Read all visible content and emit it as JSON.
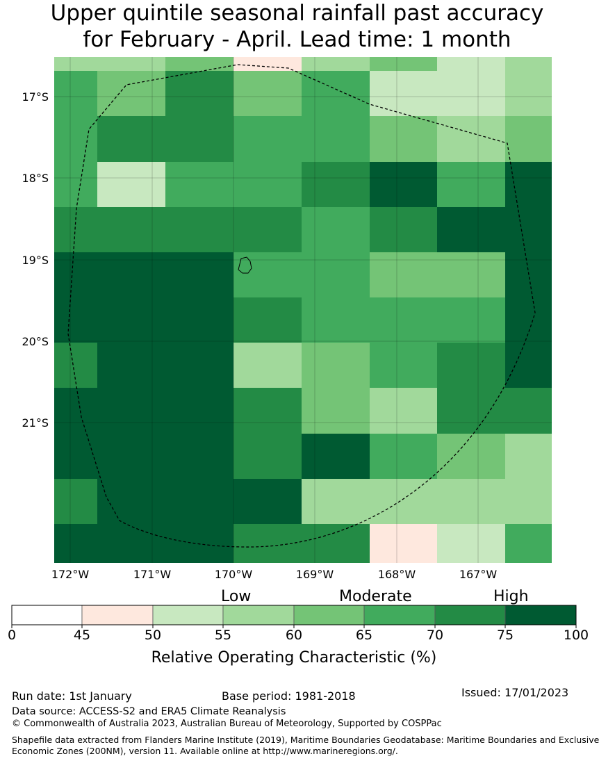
{
  "title": {
    "line1": "Upper quintile seasonal rainfall past accuracy",
    "line2": "for February - April. Lead time: 1 month"
  },
  "map": {
    "lat_labels": [
      "17°S",
      "18°S",
      "19°S",
      "20°S",
      "21°S"
    ],
    "lon_labels": [
      "172°W",
      "171°W",
      "170°W",
      "169°W",
      "168°W",
      "167°W"
    ],
    "category_colors": [
      "#ffffff",
      "#fee8de",
      "#c8e8c0",
      "#a1d99b",
      "#74c476",
      "#41ab5d",
      "#238b45",
      "#005a32"
    ],
    "grid_categories": [
      [
        3,
        3,
        3,
        4,
        4,
        1,
        3,
        4,
        2,
        2,
        3
      ],
      [
        5,
        4,
        6,
        6,
        4,
        5,
        2,
        2,
        2,
        3,
        3
      ],
      [
        5,
        6,
        6,
        6,
        5,
        5,
        4,
        4,
        3,
        3,
        4
      ],
      [
        5,
        2,
        5,
        5,
        5,
        5,
        6,
        7,
        7,
        5,
        5,
        7
      ],
      [
        6,
        6,
        6,
        5,
        6,
        6,
        5,
        6,
        6,
        7,
        7,
        7
      ],
      [
        7,
        7,
        7,
        5,
        5,
        5,
        5,
        4,
        4,
        4,
        4,
        7
      ],
      [
        7,
        7,
        7,
        6,
        6,
        5,
        5,
        5,
        5,
        5,
        5,
        7
      ],
      [
        6,
        7,
        7,
        3,
        3,
        3,
        4,
        5,
        5,
        6,
        6,
        7
      ],
      [
        7,
        7,
        7,
        6,
        6,
        4,
        4,
        3,
        3,
        6,
        6,
        6
      ],
      [
        7,
        7,
        7,
        6,
        6,
        7,
        7,
        5,
        5,
        4,
        4,
        3
      ],
      [
        6,
        7,
        7,
        7,
        7,
        2,
        3,
        3,
        3,
        3,
        3,
        3
      ],
      [
        7,
        7,
        7,
        6,
        6,
        6,
        6,
        1,
        1,
        2,
        2,
        5
      ]
    ]
  },
  "legend": {
    "categories": [
      "Low",
      "Moderate",
      "High"
    ],
    "ticks": [
      "0",
      "45",
      "50",
      "55",
      "60",
      "65",
      "70",
      "75",
      "100"
    ],
    "label": "Relative Operating Characteristic (%)"
  },
  "footer": {
    "run_date": "Run date: 1st January",
    "base_period": "Base period: 1981-2018",
    "issued": "Issued: 17/01/2023",
    "data_source": "Data source: ACCESS-S2 and ERA5 Climate Reanalysis",
    "copyright": "© Commonwealth of Australia 2023, Australian Bureau of Meteorology, Supported by COSPPac",
    "shapefile_line1": "Shapefile data extracted from Flanders Marine Institute (2019), Maritime Boundaries Geodatabase: Maritime Boundaries and Exclusive",
    "shapefile_line2": "Economic Zones (200NM), version 11. Available online at http://www.marineregions.org/."
  }
}
